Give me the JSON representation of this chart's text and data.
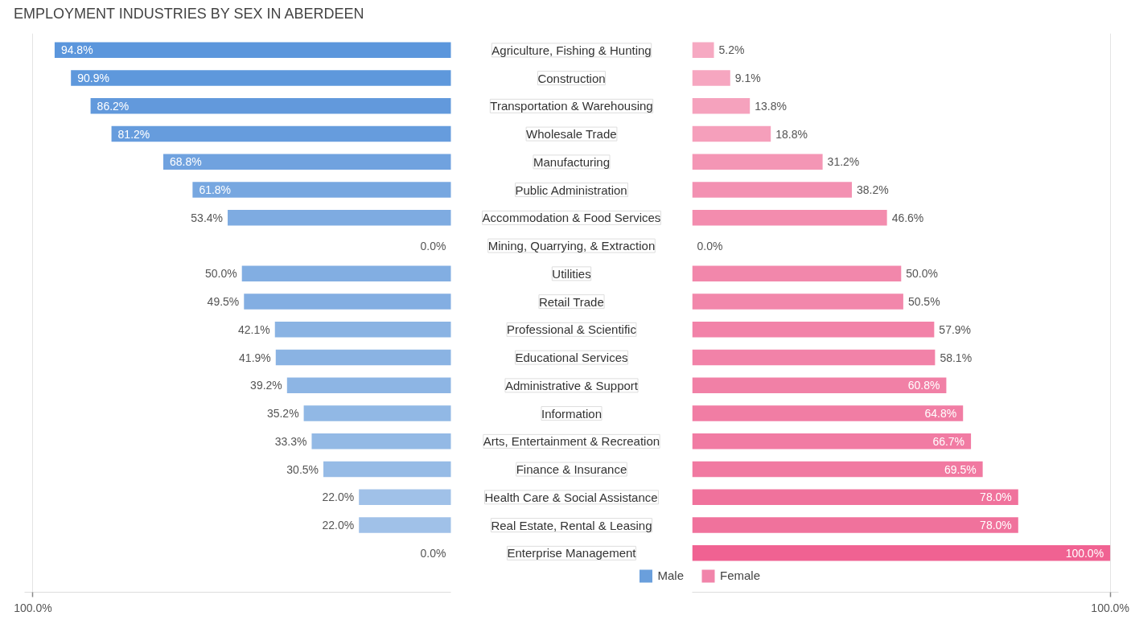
{
  "chart_data": [
    {
      "type": "bar",
      "orientation": "horizontal",
      "title": "EMPLOYMENT INDUSTRIES BY SEX IN ABERDEEN",
      "categories": [
        "Agriculture, Fishing & Hunting",
        "Construction",
        "Transportation & Warehousing",
        "Wholesale Trade",
        "Manufacturing",
        "Public Administration",
        "Accommodation & Food Services",
        "Mining, Quarrying, & Extraction",
        "Utilities",
        "Retail Trade",
        "Professional & Scientific",
        "Educational Services",
        "Administrative & Support",
        "Information",
        "Arts, Entertainment & Recreation",
        "Finance & Insurance",
        "Health Care & Social Assistance",
        "Real Estate, Rental & Leasing",
        "Enterprise Management"
      ],
      "series": [
        {
          "name": "Male",
          "color": "#6a9fdc",
          "colors": [
            "#5b96dc",
            "#5e98dc",
            "#6299dc",
            "#669cdd",
            "#70a2df",
            "#77a7e0",
            "#7eabe1",
            "#adcbee",
            "#82aee2",
            "#83aee2",
            "#8ab3e3",
            "#8ab3e3",
            "#8db5e4",
            "#91b8e5",
            "#93b9e5",
            "#96bbe6",
            "#a0c1e8",
            "#a0c1e8",
            "#adcbee"
          ],
          "values": [
            94.8,
            90.9,
            86.2,
            81.2,
            68.8,
            61.8,
            53.4,
            0.0,
            50.0,
            49.5,
            42.1,
            41.9,
            39.2,
            35.2,
            33.3,
            30.5,
            22.0,
            22.0,
            0.0
          ],
          "value_labels": [
            "94.8%",
            "90.9%",
            "86.2%",
            "81.2%",
            "68.8%",
            "61.8%",
            "53.4%",
            "0.0%",
            "50.0%",
            "49.5%",
            "42.1%",
            "41.9%",
            "39.2%",
            "35.2%",
            "33.3%",
            "30.5%",
            "22.0%",
            "22.0%",
            "0.0%"
          ]
        }
      ],
      "xlim": [
        102,
        0
      ],
      "xticks": [
        {
          "value": 100,
          "label": "100.0%"
        }
      ],
      "grid": "x",
      "legend": "bottom right"
    },
    {
      "type": "bar",
      "orientation": "horizontal",
      "categories": [
        null,
        null,
        null,
        null,
        null,
        null,
        null,
        null,
        null,
        null,
        null,
        null,
        null,
        null,
        null,
        null,
        null,
        null,
        null
      ],
      "series": [
        {
          "name": "Female",
          "color": "#f184aa",
          "colors": [
            "#f6a9c2",
            "#f6a6c0",
            "#f5a2bd",
            "#f59fbb",
            "#f496b5",
            "#f391b2",
            "#f38cae",
            "#f7b0c8",
            "#f287ab",
            "#f287ab",
            "#f282a8",
            "#f282a8",
            "#f180a6",
            "#f17da4",
            "#f17ba3",
            "#f179a1",
            "#f0729c",
            "#f0729c",
            "#f06292"
          ],
          "values": [
            5.2,
            9.1,
            13.8,
            18.8,
            31.2,
            38.2,
            46.6,
            0.0,
            50.0,
            50.5,
            57.9,
            58.1,
            60.8,
            64.8,
            66.7,
            69.5,
            78.0,
            78.0,
            100.0
          ],
          "value_labels": [
            "5.2%",
            "9.1%",
            "13.8%",
            "18.8%",
            "31.2%",
            "38.2%",
            "46.6%",
            "0.0%",
            "50.0%",
            "50.5%",
            "57.9%",
            "58.1%",
            "60.8%",
            "64.8%",
            "66.7%",
            "69.5%",
            "78.0%",
            "78.0%",
            "100.0%"
          ]
        }
      ],
      "xlim": [
        0,
        102
      ],
      "xticks": [
        {
          "value": 100,
          "label": "100.0%"
        }
      ],
      "grid": "x",
      "legend": "bottom left"
    }
  ]
}
